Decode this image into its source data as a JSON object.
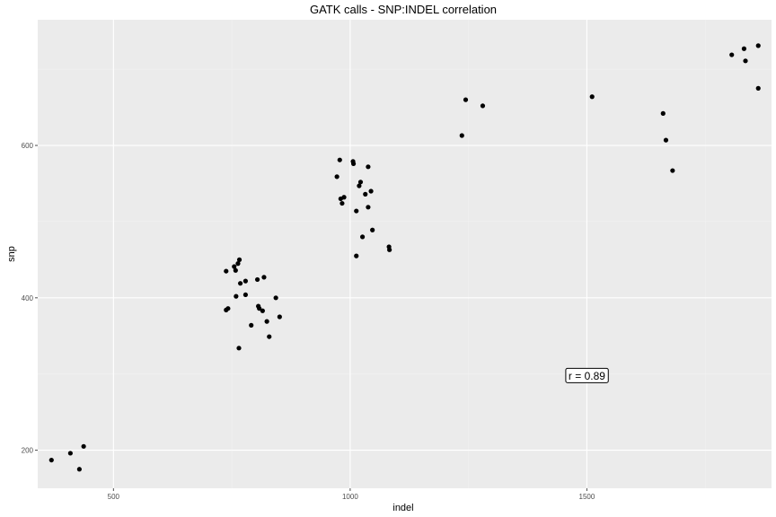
{
  "chart_data": {
    "type": "scatter",
    "title": "GATK calls - SNP:INDEL correlation",
    "xlabel": "indel",
    "ylabel": "snp",
    "xlim": [
      340,
      1890
    ],
    "ylim": [
      150,
      765
    ],
    "x_major_ticks": [
      500,
      1000,
      1500
    ],
    "x_minor_ticks": [
      750,
      1250,
      1750
    ],
    "y_major_ticks": [
      200,
      400,
      600
    ],
    "y_minor_ticks": [
      300,
      500,
      700
    ],
    "x_tick_labels": [
      "500",
      "1000",
      "1500"
    ],
    "y_tick_labels": [
      "200",
      "400",
      "600"
    ],
    "grid": true,
    "annotation": {
      "text": "r =  0.89",
      "x": 1500,
      "y": 298
    },
    "series": [
      {
        "points": [
          [
            369,
            187
          ],
          [
            409,
            196
          ],
          [
            428,
            175
          ],
          [
            437,
            205
          ],
          [
            738,
            435
          ],
          [
            738,
            384
          ],
          [
            742,
            386
          ],
          [
            755,
            441
          ],
          [
            758,
            436
          ],
          [
            759,
            402
          ],
          [
            763,
            445
          ],
          [
            766,
            450
          ],
          [
            765,
            334
          ],
          [
            768,
            419
          ],
          [
            779,
            404
          ],
          [
            779,
            422
          ],
          [
            791,
            364
          ],
          [
            804,
            424
          ],
          [
            806,
            389
          ],
          [
            808,
            386
          ],
          [
            815,
            383
          ],
          [
            818,
            427
          ],
          [
            824,
            369
          ],
          [
            829,
            349
          ],
          [
            843,
            400
          ],
          [
            851,
            375
          ],
          [
            972,
            559
          ],
          [
            978,
            581
          ],
          [
            980,
            530
          ],
          [
            983,
            524
          ],
          [
            987,
            532
          ],
          [
            1006,
            579
          ],
          [
            1007,
            576
          ],
          [
            1013,
            514
          ],
          [
            1013,
            455
          ],
          [
            1019,
            547
          ],
          [
            1022,
            552
          ],
          [
            1026,
            480
          ],
          [
            1032,
            536
          ],
          [
            1038,
            572
          ],
          [
            1038,
            519
          ],
          [
            1044,
            540
          ],
          [
            1047,
            489
          ],
          [
            1082,
            467
          ],
          [
            1083,
            463
          ],
          [
            1236,
            613
          ],
          [
            1244,
            660
          ],
          [
            1280,
            652
          ],
          [
            1511,
            664
          ],
          [
            1661,
            642
          ],
          [
            1667,
            607
          ],
          [
            1681,
            567
          ],
          [
            1806,
            719
          ],
          [
            1832,
            727
          ],
          [
            1835,
            711
          ],
          [
            1862,
            731
          ],
          [
            1862,
            675
          ]
        ]
      }
    ]
  }
}
